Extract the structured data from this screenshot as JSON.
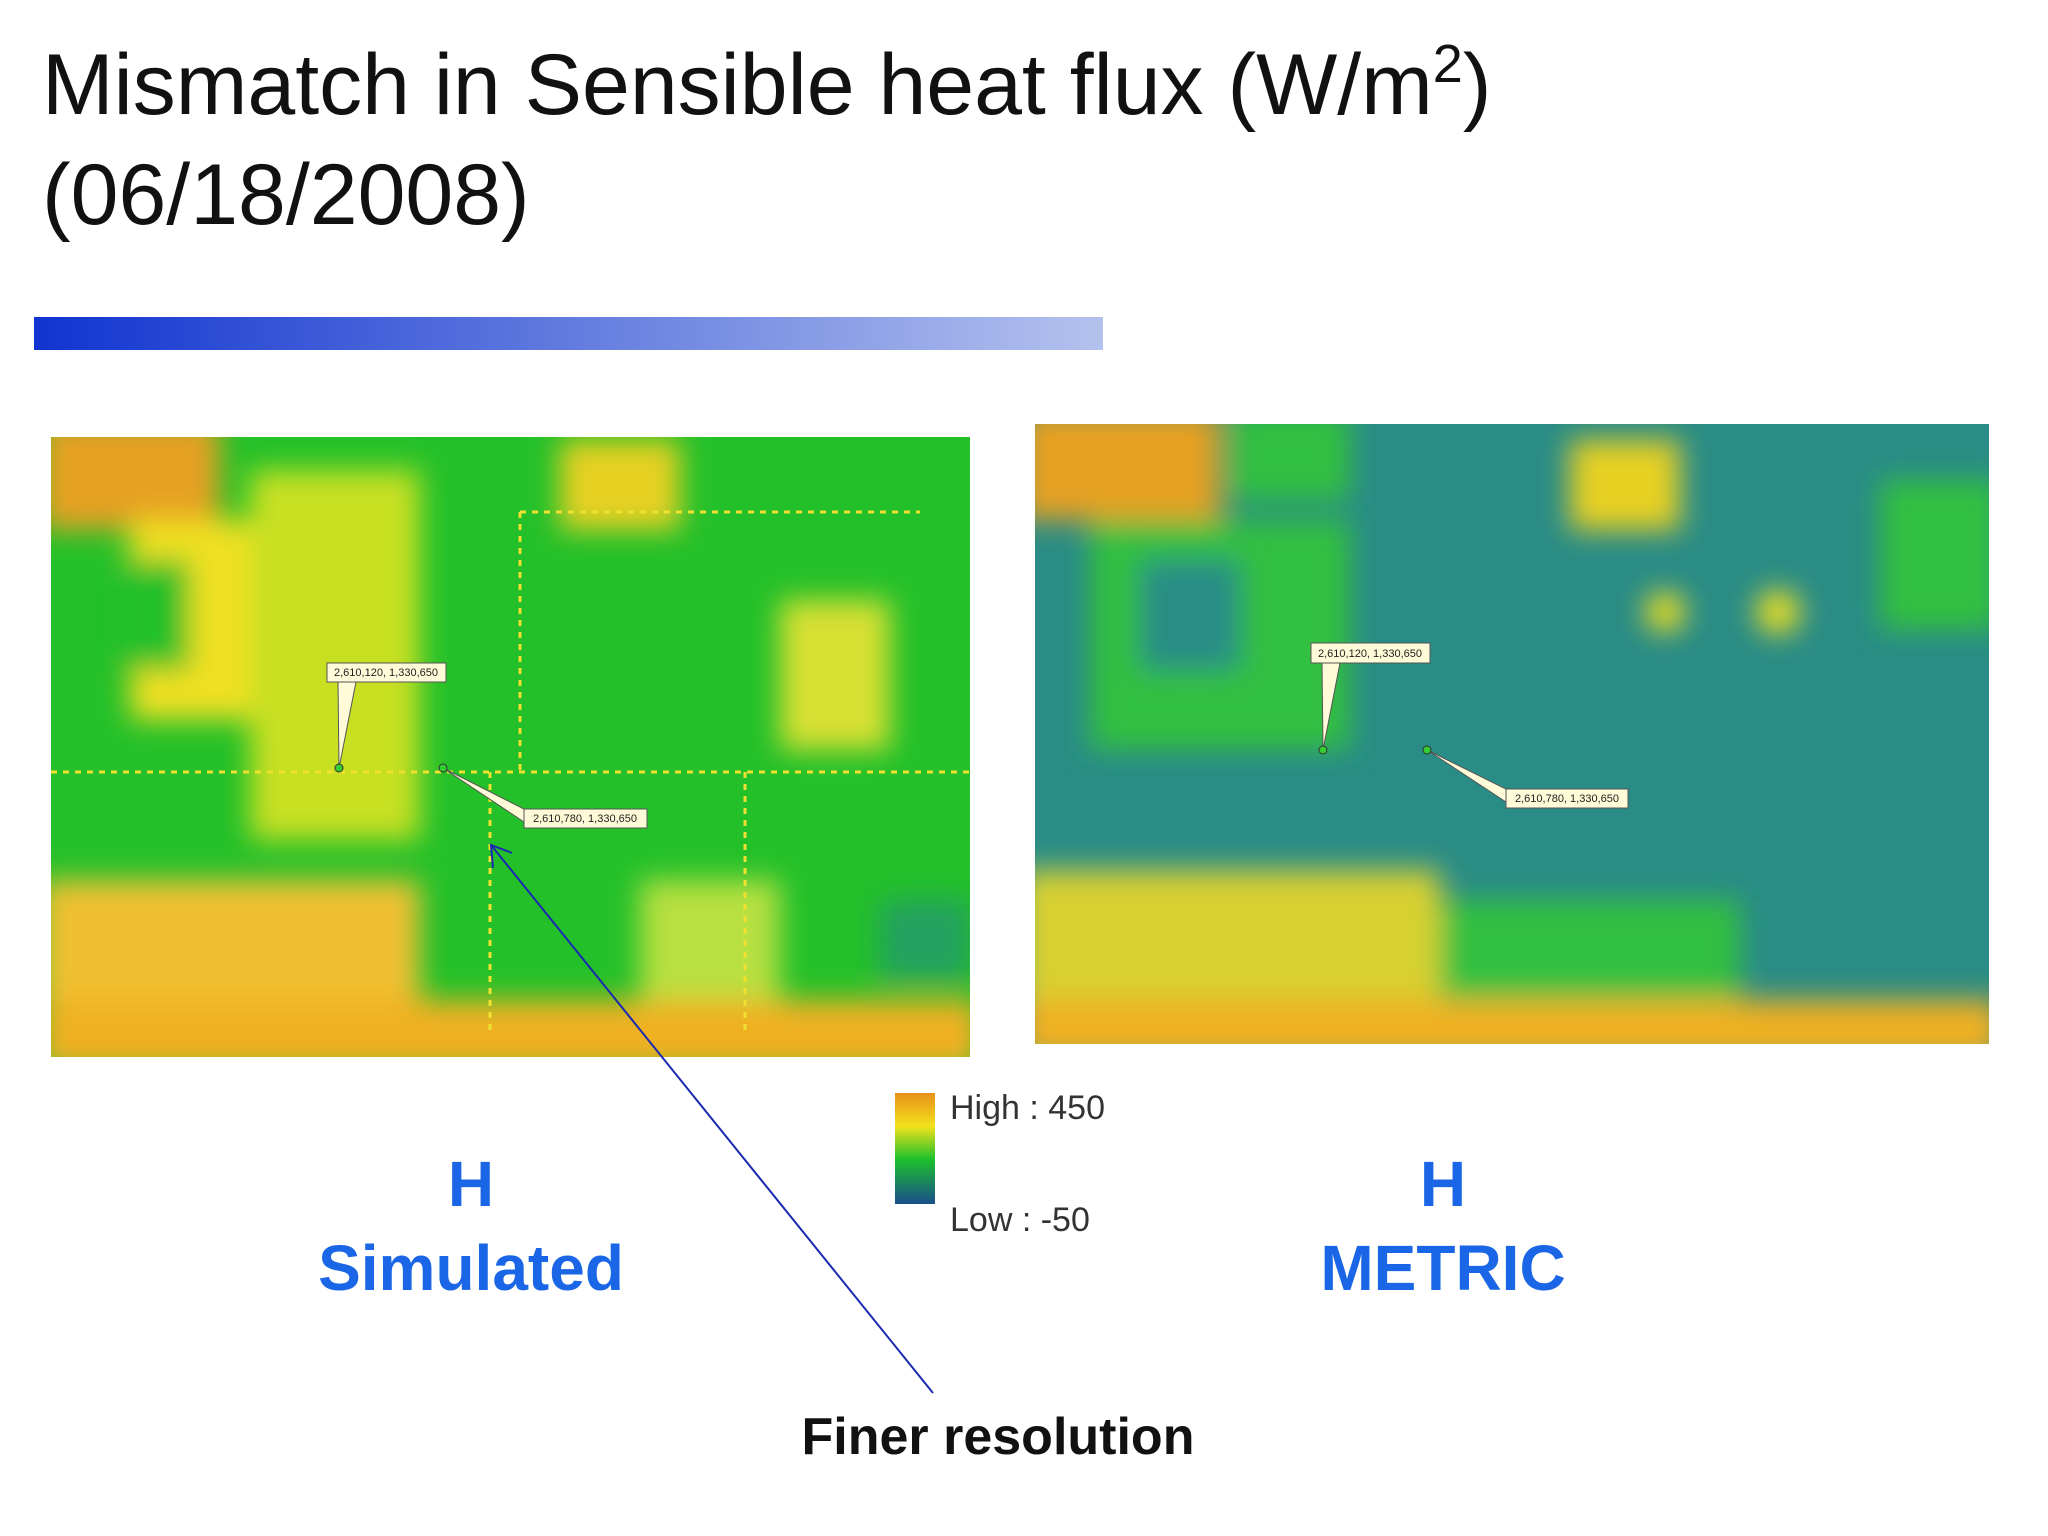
{
  "title": {
    "main": "Mismatch in Sensible heat flux (W/m",
    "superscript": "2",
    "close": ")",
    "date": "(06/18/2008)"
  },
  "left_map": {
    "callouts": [
      "2,610,120, 1,330,650",
      "2,610,780, 1,330,650"
    ],
    "caption": [
      "H",
      "Simulated"
    ]
  },
  "right_map": {
    "callouts": [
      "2,610,120, 1,330,650",
      "2,610,780, 1,330,650"
    ],
    "caption": [
      "H",
      "METRIC"
    ]
  },
  "legend": {
    "high": "High : 450",
    "low": "Low : -50"
  },
  "annotation": "Finer resolution"
}
